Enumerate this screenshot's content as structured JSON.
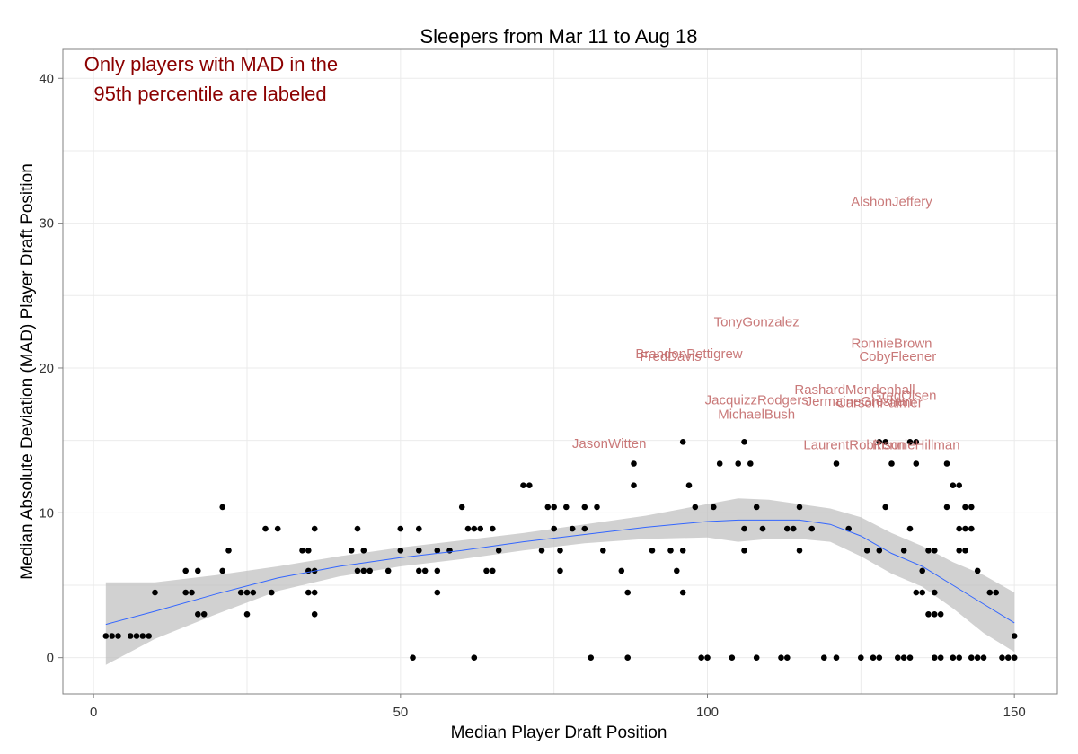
{
  "chart_data": {
    "type": "scatter",
    "title": "Sleepers from Mar 11 to Aug 18",
    "xlabel": "Median Player Draft Position",
    "ylabel": "Median Absolute Deviation (MAD) Player Draft Position",
    "xlim": [
      -5,
      157
    ],
    "ylim": [
      -2.5,
      42
    ],
    "xticks": [
      0,
      50,
      100,
      150
    ],
    "yticks": [
      0,
      10,
      20,
      30,
      40
    ],
    "grid": true,
    "note": [
      "Only players with MAD in the",
      "95th percentile are labeled"
    ],
    "colors": {
      "points": "#000000",
      "smooth_line": "#3366ff",
      "ribbon": "#bebebe",
      "label": "#c46b6b",
      "note": "#8b0000"
    },
    "points": [
      [
        2,
        1.5
      ],
      [
        3,
        1.5
      ],
      [
        4,
        1.5
      ],
      [
        6,
        1.5
      ],
      [
        7,
        1.5
      ],
      [
        8,
        1.5
      ],
      [
        9,
        1.5
      ],
      [
        10,
        4.5
      ],
      [
        15,
        4.5
      ],
      [
        15,
        6
      ],
      [
        16,
        4.5
      ],
      [
        17,
        3
      ],
      [
        17,
        6
      ],
      [
        18,
        3
      ],
      [
        21,
        10.4
      ],
      [
        21,
        6
      ],
      [
        22,
        7.4
      ],
      [
        24,
        4.5
      ],
      [
        25,
        3
      ],
      [
        25,
        4.5
      ],
      [
        26,
        4.5
      ],
      [
        28,
        8.9
      ],
      [
        29,
        4.5
      ],
      [
        30,
        8.9
      ],
      [
        34,
        7.4
      ],
      [
        35,
        7.4
      ],
      [
        35,
        6
      ],
      [
        35,
        4.5
      ],
      [
        36,
        6
      ],
      [
        36,
        4.5
      ],
      [
        36,
        3
      ],
      [
        36,
        8.9
      ],
      [
        42,
        7.4
      ],
      [
        43,
        6
      ],
      [
        43,
        8.9
      ],
      [
        44,
        6
      ],
      [
        44,
        7.4
      ],
      [
        45,
        6
      ],
      [
        48,
        6
      ],
      [
        50,
        7.4
      ],
      [
        50,
        8.9
      ],
      [
        52,
        0
      ],
      [
        53,
        8.9
      ],
      [
        53,
        7.4
      ],
      [
        53,
        6
      ],
      [
        54,
        6
      ],
      [
        56,
        4.5
      ],
      [
        56,
        6
      ],
      [
        56,
        7.4
      ],
      [
        58,
        7.4
      ],
      [
        60,
        10.4
      ],
      [
        61,
        8.9
      ],
      [
        62,
        8.9
      ],
      [
        62,
        0
      ],
      [
        63,
        8.9
      ],
      [
        64,
        6
      ],
      [
        65,
        6
      ],
      [
        65,
        8.9
      ],
      [
        66,
        7.4
      ],
      [
        70,
        11.9
      ],
      [
        71,
        11.9
      ],
      [
        73,
        7.4
      ],
      [
        74,
        10.4
      ],
      [
        75,
        10.4
      ],
      [
        75,
        8.9
      ],
      [
        76,
        6
      ],
      [
        76,
        7.4
      ],
      [
        77,
        10.4
      ],
      [
        78,
        8.9
      ],
      [
        80,
        10.4
      ],
      [
        80,
        8.9
      ],
      [
        81,
        0
      ],
      [
        82,
        10.4
      ],
      [
        83,
        7.4
      ],
      [
        86,
        6
      ],
      [
        87,
        4.5
      ],
      [
        87,
        0
      ],
      [
        88,
        13.4
      ],
      [
        88,
        11.9
      ],
      [
        91,
        7.4
      ],
      [
        94,
        7.4
      ],
      [
        95,
        6
      ],
      [
        96,
        4.5
      ],
      [
        96,
        14.9
      ],
      [
        96,
        7.4
      ],
      [
        97,
        11.9
      ],
      [
        98,
        10.4
      ],
      [
        99,
        0
      ],
      [
        100,
        0
      ],
      [
        101,
        10.4
      ],
      [
        102,
        13.4
      ],
      [
        104,
        0
      ],
      [
        105,
        13.4
      ],
      [
        106,
        14.9
      ],
      [
        106,
        8.9
      ],
      [
        106,
        7.4
      ],
      [
        107,
        13.4
      ],
      [
        108,
        10.4
      ],
      [
        108,
        0
      ],
      [
        109,
        8.9
      ],
      [
        112,
        0
      ],
      [
        113,
        0
      ],
      [
        113,
        8.9
      ],
      [
        114,
        8.9
      ],
      [
        115,
        10.4
      ],
      [
        115,
        7.4
      ],
      [
        117,
        8.9
      ],
      [
        119,
        0
      ],
      [
        121,
        0
      ],
      [
        121,
        13.4
      ],
      [
        123,
        8.9
      ],
      [
        125,
        0
      ],
      [
        126,
        7.4
      ],
      [
        127,
        0
      ],
      [
        128,
        0
      ],
      [
        128,
        7.4
      ],
      [
        128,
        14.9
      ],
      [
        129,
        14.9
      ],
      [
        129,
        10.4
      ],
      [
        130,
        13.4
      ],
      [
        131,
        0
      ],
      [
        132,
        0
      ],
      [
        132,
        7.4
      ],
      [
        133,
        0
      ],
      [
        133,
        8.9
      ],
      [
        133,
        14.9
      ],
      [
        134,
        14.9
      ],
      [
        134,
        13.4
      ],
      [
        134,
        4.5
      ],
      [
        135,
        4.5
      ],
      [
        135,
        6
      ],
      [
        136,
        3
      ],
      [
        136,
        7.4
      ],
      [
        137,
        0
      ],
      [
        137,
        4.5
      ],
      [
        137,
        7.4
      ],
      [
        137,
        3
      ],
      [
        138,
        0
      ],
      [
        138,
        3
      ],
      [
        139,
        13.4
      ],
      [
        139,
        10.4
      ],
      [
        140,
        0
      ],
      [
        140,
        11.9
      ],
      [
        141,
        0
      ],
      [
        141,
        11.9
      ],
      [
        141,
        8.9
      ],
      [
        141,
        7.4
      ],
      [
        142,
        8.9
      ],
      [
        142,
        10.4
      ],
      [
        142,
        7.4
      ],
      [
        143,
        10.4
      ],
      [
        143,
        8.9
      ],
      [
        143,
        0
      ],
      [
        144,
        6
      ],
      [
        144,
        0
      ],
      [
        145,
        0
      ],
      [
        146,
        4.5
      ],
      [
        147,
        4.5
      ],
      [
        148,
        0
      ],
      [
        149,
        0
      ],
      [
        150,
        1.5
      ],
      [
        150,
        0
      ]
    ],
    "labels": [
      {
        "name": "AlshonJeffery",
        "x": 130,
        "y": 31.5
      },
      {
        "name": "TonyGonzalez",
        "x": 108,
        "y": 23.2
      },
      {
        "name": "RonnieBrown",
        "x": 130,
        "y": 21.7
      },
      {
        "name": "CobyFleener",
        "x": 131,
        "y": 20.8
      },
      {
        "name": "BrandonPettigrew",
        "x": 97,
        "y": 21.0
      },
      {
        "name": "FredDavis",
        "x": 94,
        "y": 20.8
      },
      {
        "name": "RashardMendenhall",
        "x": 124,
        "y": 18.5
      },
      {
        "name": "GregOlsen",
        "x": 132,
        "y": 18.1
      },
      {
        "name": "JacquizzRodgers",
        "x": 108,
        "y": 17.8
      },
      {
        "name": "JermaineGresham",
        "x": 125,
        "y": 17.7
      },
      {
        "name": "CarsonPalmer",
        "x": 128,
        "y": 17.6
      },
      {
        "name": "MichaelBush",
        "x": 108,
        "y": 16.8
      },
      {
        "name": "JasonWitten",
        "x": 84,
        "y": 14.8
      },
      {
        "name": "LaurentRobinson",
        "x": 124,
        "y": 14.7
      },
      {
        "name": "RonnieHillman",
        "x": 134,
        "y": 14.7
      }
    ],
    "smooth": [
      [
        2,
        2.3
      ],
      [
        10,
        3.2
      ],
      [
        20,
        4.4
      ],
      [
        30,
        5.5
      ],
      [
        40,
        6.3
      ],
      [
        50,
        6.9
      ],
      [
        60,
        7.4
      ],
      [
        70,
        8.0
      ],
      [
        80,
        8.5
      ],
      [
        90,
        9.0
      ],
      [
        100,
        9.4
      ],
      [
        105,
        9.5
      ],
      [
        110,
        9.5
      ],
      [
        115,
        9.5
      ],
      [
        120,
        9.2
      ],
      [
        125,
        8.4
      ],
      [
        130,
        7.2
      ],
      [
        135,
        6.3
      ],
      [
        140,
        5.0
      ],
      [
        145,
        3.7
      ],
      [
        150,
        2.4
      ]
    ],
    "ribbon_upper": [
      [
        2,
        5.2
      ],
      [
        10,
        5.2
      ],
      [
        20,
        5.7
      ],
      [
        30,
        6.3
      ],
      [
        40,
        7.0
      ],
      [
        50,
        7.6
      ],
      [
        60,
        8.1
      ],
      [
        70,
        8.6
      ],
      [
        80,
        9.2
      ],
      [
        90,
        9.8
      ],
      [
        100,
        10.6
      ],
      [
        105,
        11.0
      ],
      [
        110,
        10.9
      ],
      [
        115,
        10.6
      ],
      [
        120,
        10.3
      ],
      [
        125,
        9.7
      ],
      [
        130,
        8.6
      ],
      [
        135,
        7.7
      ],
      [
        140,
        6.6
      ],
      [
        145,
        5.7
      ],
      [
        150,
        4.5
      ]
    ],
    "ribbon_lower": [
      [
        2,
        -0.5
      ],
      [
        10,
        1.3
      ],
      [
        20,
        3.0
      ],
      [
        30,
        4.6
      ],
      [
        40,
        5.6
      ],
      [
        50,
        6.3
      ],
      [
        60,
        6.8
      ],
      [
        70,
        7.4
      ],
      [
        80,
        7.9
      ],
      [
        90,
        8.2
      ],
      [
        100,
        8.3
      ],
      [
        105,
        8.0
      ],
      [
        110,
        8.2
      ],
      [
        115,
        8.2
      ],
      [
        120,
        8.0
      ],
      [
        125,
        7.0
      ],
      [
        130,
        5.8
      ],
      [
        135,
        4.9
      ],
      [
        140,
        3.4
      ],
      [
        145,
        1.7
      ],
      [
        150,
        0.4
      ]
    ]
  }
}
